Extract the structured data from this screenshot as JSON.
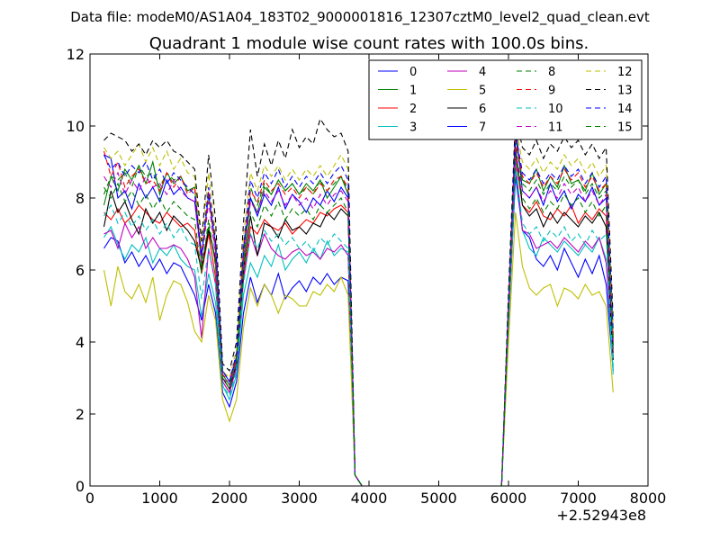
{
  "chart_data": {
    "type": "line",
    "suptitle": "Data file: modeM0/AS1A04_183T02_9000001816_12307cztM0_level2_quad_clean.evt",
    "title": "Quadrant 1 module wise count rates with 100.0s bins.",
    "xlabel": "",
    "ylabel": "",
    "x_offset_label": "+2.52943e8",
    "xlim": [
      0,
      8000
    ],
    "ylim": [
      0,
      12
    ],
    "xticks": [
      0,
      1000,
      2000,
      3000,
      4000,
      5000,
      6000,
      7000,
      8000
    ],
    "yticks": [
      0,
      2,
      4,
      6,
      8,
      10,
      12
    ],
    "legend": {
      "placement": "top-right",
      "columns": 4
    },
    "x": [
      200,
      300,
      400,
      500,
      600,
      700,
      800,
      900,
      1000,
      1100,
      1200,
      1300,
      1400,
      1500,
      1600,
      1700,
      1800,
      1900,
      2000,
      2100,
      2200,
      2300,
      2400,
      2500,
      2600,
      2700,
      2800,
      2900,
      3000,
      3100,
      3200,
      3300,
      3400,
      3500,
      3600,
      3700,
      3800,
      3900,
      5900,
      6000,
      6100,
      6200,
      6300,
      6400,
      6500,
      6600,
      6700,
      6800,
      6900,
      7000,
      7100,
      7200,
      7300,
      7400,
      7500
    ],
    "series": [
      {
        "name": "0",
        "color": "#0000ff",
        "dash": "solid",
        "values": [
          6.6,
          6.9,
          6.8,
          6.2,
          6.5,
          6.1,
          6.4,
          6.0,
          6.3,
          5.9,
          6.2,
          6.1,
          5.7,
          5.3,
          4.6,
          5.6,
          4.8,
          2.6,
          2.2,
          2.9,
          4.8,
          5.8,
          5.1,
          5.6,
          5.3,
          5.9,
          5.2,
          5.5,
          5.7,
          5.4,
          5.8,
          5.6,
          5.9,
          5.6,
          5.8,
          5.7,
          0.3,
          0,
          0,
          4.5,
          8.6,
          7.1,
          6.9,
          6.3,
          6.1,
          6.4,
          6.0,
          6.6,
          6.2,
          5.8,
          6.3,
          5.9,
          6.4,
          5.6,
          3.2
        ]
      },
      {
        "name": "1",
        "color": "#008000",
        "dash": "solid",
        "values": [
          7.8,
          8.6,
          8.2,
          8.8,
          8.5,
          8.9,
          8.4,
          9.0,
          8.1,
          8.7,
          8.4,
          8.6,
          8.2,
          8.3,
          6.1,
          7.2,
          6.2,
          3.1,
          2.8,
          3.6,
          6.2,
          8.0,
          7.6,
          8.3,
          8.1,
          8.5,
          8.2,
          8.4,
          8.1,
          8.4,
          8.2,
          8.5,
          8.0,
          8.3,
          8.6,
          8.1,
          0.3,
          0,
          0,
          5.0,
          9.7,
          8.5,
          8.4,
          8.8,
          8.2,
          8.6,
          8.3,
          8.9,
          8.4,
          8.5,
          8.2,
          8.7,
          8.1,
          8.4,
          4.1
        ]
      },
      {
        "name": "2",
        "color": "#ff0000",
        "dash": "solid",
        "values": [
          7.6,
          7.4,
          7.7,
          7.3,
          7.5,
          7.8,
          7.6,
          7.4,
          7.3,
          7.6,
          7.4,
          7.2,
          7.3,
          7.1,
          5.9,
          7.0,
          5.8,
          2.9,
          2.6,
          3.3,
          5.8,
          7.2,
          7.0,
          7.4,
          7.2,
          7.1,
          7.3,
          7.0,
          7.2,
          7.4,
          7.3,
          7.6,
          7.5,
          7.7,
          7.8,
          7.6,
          0.3,
          0,
          0,
          4.8,
          9.2,
          7.8,
          7.6,
          7.9,
          7.5,
          7.4,
          7.7,
          7.5,
          7.8,
          7.3,
          7.6,
          7.4,
          7.7,
          7.5,
          3.8
        ]
      },
      {
        "name": "3",
        "color": "#00bfbf",
        "dash": "solid",
        "values": [
          6.9,
          7.2,
          6.7,
          6.3,
          6.7,
          6.5,
          6.9,
          6.2,
          6.6,
          6.4,
          6.7,
          6.3,
          6.1,
          6.0,
          4.7,
          5.9,
          5.1,
          2.8,
          2.4,
          3.1,
          5.3,
          6.2,
          5.8,
          6.4,
          6.1,
          6.7,
          6.0,
          6.3,
          6.5,
          6.2,
          6.6,
          6.3,
          6.8,
          6.4,
          6.6,
          6.5,
          0.3,
          0,
          0,
          4.5,
          8.8,
          7.1,
          6.6,
          6.4,
          6.9,
          6.7,
          6.5,
          6.8,
          6.6,
          6.4,
          6.7,
          6.5,
          6.9,
          6.3,
          3.1
        ]
      },
      {
        "name": "4",
        "color": "#bf00bf",
        "dash": "solid",
        "values": [
          7.0,
          7.1,
          6.6,
          7.3,
          6.9,
          7.2,
          6.6,
          6.9,
          6.6,
          6.6,
          6.7,
          6.6,
          6.3,
          5.8,
          4.1,
          6.6,
          5.6,
          2.9,
          2.6,
          3.3,
          5.7,
          7.0,
          6.4,
          7.0,
          6.6,
          6.4,
          6.3,
          6.5,
          6.6,
          6.4,
          6.5,
          6.3,
          6.6,
          6.5,
          6.7,
          6.4,
          0.3,
          0,
          0,
          4.6,
          9.0,
          7.1,
          7.0,
          6.6,
          6.7,
          6.8,
          6.6,
          6.9,
          6.7,
          6.5,
          6.8,
          6.6,
          6.9,
          6.2,
          3.7
        ]
      },
      {
        "name": "5",
        "color": "#bfbf00",
        "dash": "solid",
        "values": [
          6.0,
          5.0,
          6.1,
          5.4,
          5.2,
          5.6,
          5.1,
          5.8,
          4.6,
          5.3,
          5.7,
          5.6,
          5.1,
          4.3,
          4.0,
          5.3,
          4.6,
          2.4,
          1.8,
          2.4,
          4.4,
          5.5,
          5.0,
          5.6,
          5.3,
          4.8,
          5.3,
          5.2,
          5.0,
          5.0,
          5.4,
          5.3,
          5.6,
          5.4,
          5.8,
          5.3,
          0.3,
          0,
          0,
          4.0,
          7.6,
          6.1,
          5.5,
          5.3,
          5.5,
          5.6,
          5.0,
          5.5,
          5.4,
          5.2,
          5.6,
          5.3,
          5.4,
          5.0,
          2.6
        ]
      },
      {
        "name": "6",
        "color": "#000000",
        "dash": "solid",
        "values": [
          7.2,
          8.2,
          7.6,
          7.9,
          7.4,
          7.0,
          7.7,
          7.3,
          7.6,
          7.1,
          7.5,
          7.3,
          7.1,
          6.8,
          6.0,
          7.1,
          6.3,
          3.0,
          2.7,
          3.4,
          6.0,
          7.5,
          6.4,
          7.3,
          7.2,
          6.9,
          7.4,
          7.1,
          7.2,
          7.0,
          7.3,
          7.2,
          7.6,
          7.4,
          7.7,
          7.5,
          0.3,
          0,
          0,
          4.8,
          9.4,
          7.8,
          7.5,
          7.7,
          7.2,
          7.6,
          7.3,
          7.6,
          7.4,
          7.2,
          7.5,
          7.3,
          7.6,
          7.2,
          3.5
        ]
      },
      {
        "name": "7",
        "color": "#0000ff",
        "dash": "solid",
        "values": [
          9.2,
          9.1,
          8.0,
          8.2,
          7.7,
          8.4,
          8.0,
          8.3,
          7.9,
          8.5,
          8.1,
          8.3,
          8.0,
          7.9,
          6.4,
          8.1,
          6.7,
          3.2,
          2.9,
          3.6,
          6.6,
          8.0,
          7.5,
          8.1,
          7.8,
          8.3,
          7.7,
          8.1,
          7.9,
          7.6,
          8.0,
          7.8,
          8.2,
          7.9,
          8.3,
          8.0,
          0.3,
          0,
          0,
          5.0,
          10.0,
          8.2,
          8.0,
          8.3,
          7.8,
          8.4,
          7.9,
          8.2,
          7.7,
          8.1,
          7.9,
          8.3,
          7.8,
          8.0,
          3.9
        ]
      },
      {
        "name": "8",
        "color": "#008000",
        "dash": "dashed",
        "values": [
          8.1,
          8.6,
          8.5,
          8.7,
          8.3,
          8.9,
          8.6,
          8.7,
          8.3,
          8.7,
          8.5,
          8.6,
          8.2,
          8.3,
          6.3,
          8.1,
          6.5,
          3.1,
          2.8,
          3.5,
          6.4,
          8.3,
          7.8,
          8.4,
          8.1,
          8.5,
          8.2,
          8.4,
          8.1,
          8.3,
          8.1,
          8.5,
          8.2,
          8.4,
          8.6,
          8.2,
          0.3,
          0,
          0,
          5.0,
          9.6,
          8.4,
          8.2,
          8.5,
          8.1,
          8.4,
          8.2,
          8.6,
          8.3,
          8.5,
          8.1,
          8.4,
          8.0,
          8.2,
          4.0
        ]
      },
      {
        "name": "9",
        "color": "#ff0000",
        "dash": "dashed",
        "values": [
          9.3,
          8.6,
          9.0,
          8.3,
          8.6,
          8.8,
          8.4,
          8.5,
          8.2,
          8.7,
          8.3,
          8.6,
          8.1,
          8.3,
          6.4,
          8.2,
          6.6,
          3.1,
          2.9,
          3.6,
          6.6,
          8.2,
          7.9,
          8.5,
          8.2,
          8.4,
          8.1,
          8.3,
          8.0,
          8.3,
          8.1,
          8.4,
          8.2,
          8.5,
          8.6,
          8.3,
          0.3,
          0,
          0,
          5.1,
          9.6,
          8.6,
          8.4,
          8.7,
          8.3,
          8.6,
          8.4,
          8.8,
          8.5,
          8.7,
          8.3,
          8.6,
          8.2,
          8.4,
          4.2
        ]
      },
      {
        "name": "10",
        "color": "#00bfbf",
        "dash": "dashed",
        "values": [
          7.5,
          7.8,
          7.3,
          7.6,
          7.2,
          7.5,
          7.1,
          7.4,
          7.0,
          7.3,
          6.9,
          7.2,
          6.8,
          6.7,
          5.2,
          6.6,
          5.6,
          2.8,
          2.5,
          3.2,
          5.6,
          7.0,
          6.6,
          7.1,
          6.8,
          7.0,
          6.7,
          6.9,
          6.6,
          6.8,
          6.5,
          6.9,
          6.7,
          7.0,
          6.8,
          6.6,
          0.3,
          0,
          0,
          4.6,
          8.9,
          7.3,
          7.0,
          7.2,
          6.8,
          7.1,
          6.9,
          7.2,
          6.8,
          7.0,
          6.7,
          7.1,
          6.8,
          7.0,
          3.3
        ]
      },
      {
        "name": "11",
        "color": "#bf00bf",
        "dash": "dashed",
        "values": [
          8.6,
          8.3,
          8.7,
          8.1,
          8.5,
          8.2,
          8.6,
          8.3,
          8.4,
          8.1,
          8.5,
          8.2,
          8.0,
          7.9,
          6.2,
          7.9,
          6.4,
          3.0,
          2.8,
          3.5,
          6.3,
          7.9,
          7.6,
          8.2,
          7.9,
          8.2,
          7.8,
          8.1,
          7.8,
          8.0,
          7.7,
          8.1,
          7.8,
          8.1,
          8.2,
          7.9,
          0.3,
          0,
          0,
          4.9,
          9.3,
          8.2,
          8.0,
          8.3,
          7.9,
          8.2,
          8.0,
          8.4,
          8.1,
          8.3,
          7.9,
          8.2,
          7.8,
          8.1,
          4.0
        ]
      },
      {
        "name": "12",
        "color": "#bfbf00",
        "dash": "dashed",
        "values": [
          9.4,
          9.1,
          9.3,
          8.9,
          9.2,
          9.5,
          9.0,
          9.4,
          8.9,
          9.3,
          8.8,
          9.1,
          8.7,
          8.6,
          6.6,
          8.7,
          7.0,
          3.2,
          3.0,
          3.8,
          6.9,
          8.7,
          8.2,
          8.9,
          8.6,
          8.9,
          8.5,
          8.8,
          8.5,
          8.8,
          8.6,
          8.9,
          8.6,
          8.9,
          9.2,
          8.8,
          0.3,
          0,
          0,
          5.2,
          10.0,
          9.0,
          8.8,
          9.1,
          8.7,
          9.0,
          8.8,
          9.2,
          8.9,
          9.1,
          8.7,
          9.0,
          8.6,
          8.9,
          4.3
        ]
      },
      {
        "name": "13",
        "color": "#000000",
        "dash": "dashed",
        "values": [
          9.6,
          9.8,
          9.7,
          9.6,
          9.3,
          9.5,
          9.2,
          9.6,
          9.4,
          9.6,
          9.3,
          9.2,
          9.0,
          8.8,
          6.8,
          9.2,
          7.4,
          3.4,
          3.2,
          4.0,
          7.3,
          9.9,
          8.6,
          9.5,
          8.9,
          9.6,
          9.1,
          9.9,
          9.4,
          9.7,
          9.5,
          10.2,
          9.9,
          9.7,
          9.8,
          9.3,
          0.3,
          0,
          0,
          5.4,
          10.3,
          9.4,
          9.2,
          9.6,
          9.1,
          9.5,
          9.3,
          9.7,
          9.4,
          9.6,
          9.2,
          9.5,
          9.1,
          9.4,
          4.6
        ]
      },
      {
        "name": "14",
        "color": "#0000ff",
        "dash": "dashed",
        "values": [
          9.2,
          8.8,
          9.0,
          8.6,
          8.9,
          8.7,
          9.0,
          8.5,
          8.8,
          8.4,
          8.7,
          8.5,
          8.3,
          8.1,
          6.4,
          8.3,
          6.8,
          3.2,
          2.9,
          3.7,
          6.6,
          8.5,
          8.0,
          8.7,
          8.4,
          8.8,
          8.3,
          8.6,
          8.3,
          8.6,
          8.4,
          8.7,
          8.4,
          8.7,
          8.9,
          8.5,
          0.3,
          0,
          0,
          5.1,
          9.8,
          8.7,
          8.5,
          8.8,
          8.4,
          8.7,
          8.5,
          8.9,
          8.6,
          8.8,
          8.4,
          8.7,
          8.3,
          8.6,
          4.3
        ]
      },
      {
        "name": "15",
        "color": "#008000",
        "dash": "dashed",
        "values": [
          8.3,
          8.0,
          8.4,
          7.9,
          8.2,
          7.8,
          8.1,
          7.7,
          8.0,
          7.6,
          7.9,
          7.7,
          7.5,
          7.4,
          5.9,
          7.4,
          6.1,
          3.0,
          2.7,
          3.4,
          6.0,
          7.6,
          7.2,
          7.8,
          7.5,
          7.9,
          7.4,
          7.7,
          7.5,
          7.7,
          7.4,
          7.8,
          7.6,
          7.8,
          8.0,
          7.6,
          0.3,
          0,
          0,
          4.8,
          9.2,
          8.0,
          7.7,
          8.0,
          7.6,
          7.9,
          7.7,
          8.1,
          7.8,
          8.0,
          7.6,
          7.9,
          7.5,
          7.8,
          3.9
        ]
      }
    ]
  }
}
